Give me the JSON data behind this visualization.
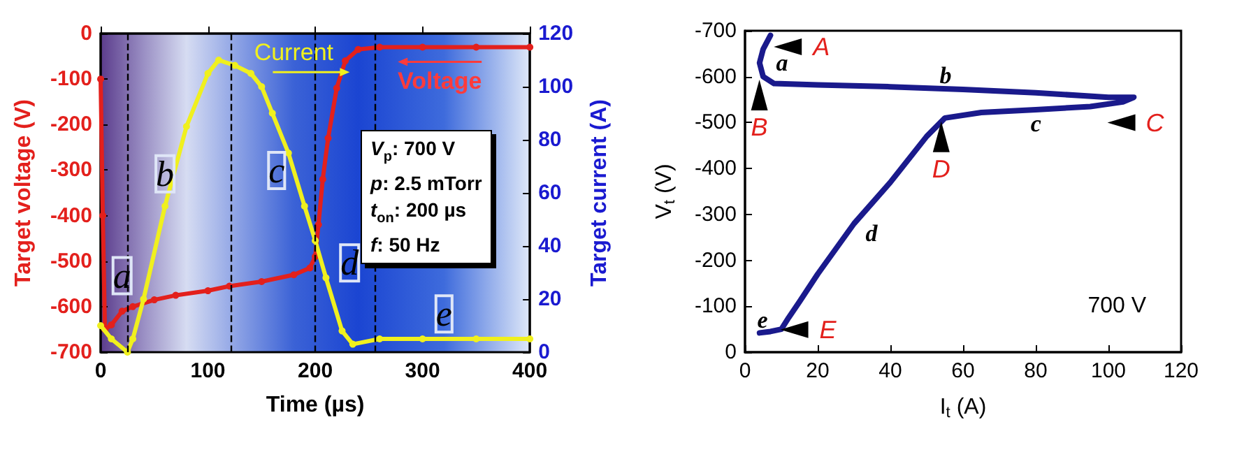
{
  "chart_data": [
    {
      "type": "line",
      "xlabel": "Time (µs)",
      "ylabel": "Target voltage (V)",
      "y2label": "Target current (A)",
      "marker": "circle",
      "grid": false,
      "xlim": [
        0,
        400
      ],
      "xticks": [
        0,
        100,
        200,
        300,
        400
      ],
      "ylim": [
        -700,
        0
      ],
      "yticks": [
        -700,
        -600,
        -500,
        -400,
        -300,
        -200,
        -100,
        0
      ],
      "y2lim": [
        0,
        120
      ],
      "y2ticks": [
        0,
        20,
        40,
        60,
        80,
        100,
        120
      ],
      "series": [
        {
          "color": "#e3201c",
          "x": [
            0,
            2,
            4,
            10,
            20,
            30,
            50,
            70,
            100,
            120,
            150,
            180,
            195,
            200,
            203,
            207,
            212,
            220,
            228,
            240,
            260,
            300,
            350,
            400
          ],
          "values": [
            -100,
            -400,
            -650,
            -640,
            -610,
            -600,
            -585,
            -575,
            -565,
            -555,
            -545,
            -530,
            -515,
            -490,
            -420,
            -320,
            -230,
            -120,
            -60,
            -35,
            -30,
            -30,
            -30,
            -30
          ]
        },
        {
          "color": "#f0f01e",
          "axis": "y2",
          "x": [
            0,
            10,
            25,
            30,
            40,
            60,
            80,
            100,
            110,
            125,
            140,
            150,
            160,
            175,
            190,
            200,
            210,
            225,
            235,
            260,
            300,
            350,
            400
          ],
          "values": [
            10,
            5,
            0,
            5,
            20,
            55,
            85,
            105,
            110,
            108,
            105,
            100,
            90,
            75,
            55,
            42,
            28,
            8,
            3,
            5,
            5,
            5,
            5
          ]
        }
      ],
      "ref_lines": [
        {
          "axis": "x",
          "value": 25,
          "color": "#000000",
          "line_style": "dashed"
        },
        {
          "axis": "x",
          "value": 122,
          "color": "#000000",
          "line_style": "dashed"
        },
        {
          "axis": "x",
          "value": 200,
          "color": "#000000",
          "line_style": "dashed"
        },
        {
          "axis": "x",
          "value": 255,
          "color": "#000000",
          "line_style": "dashed"
        }
      ],
      "annotations": [
        "a",
        "b",
        "c",
        "d",
        "e",
        "Current",
        "Voltage",
        "V$_{p}$: 700 V",
        "p: 2.5 mTorr",
        "t$_{on}$: 200 µs",
        "f: 50 Hz"
      ]
    },
    {
      "type": "line",
      "xlabel": "I$_{t}$ (A)",
      "ylabel": "V$_{t}$ (V)",
      "marker": "none",
      "grid": false,
      "xlim": [
        0,
        120
      ],
      "xticks": [
        0,
        20,
        40,
        60,
        80,
        100,
        120
      ],
      "ylim": [
        0,
        -700
      ],
      "yticks": [
        0,
        -100,
        -200,
        -300,
        -400,
        -500,
        -600,
        -700
      ],
      "series": [
        {
          "color": "#1a1a8c",
          "x": [
            7,
            5,
            4,
            5,
            8,
            20,
            40,
            60,
            80,
            100,
            107,
            104,
            95,
            80,
            65,
            55,
            50,
            45,
            40,
            30,
            20,
            15,
            12,
            10,
            7,
            4
          ],
          "values": [
            -690,
            -660,
            -630,
            -600,
            -585,
            -582,
            -578,
            -572,
            -565,
            -555,
            -555,
            -545,
            -535,
            -528,
            -522,
            -510,
            -470,
            -420,
            -370,
            -280,
            -170,
            -110,
            -75,
            -50,
            -45,
            -42
          ]
        }
      ],
      "annotations": [
        "a",
        "b",
        "c",
        "d",
        "e",
        "A",
        "B",
        "C",
        "D",
        "E",
        "700 V"
      ]
    }
  ]
}
